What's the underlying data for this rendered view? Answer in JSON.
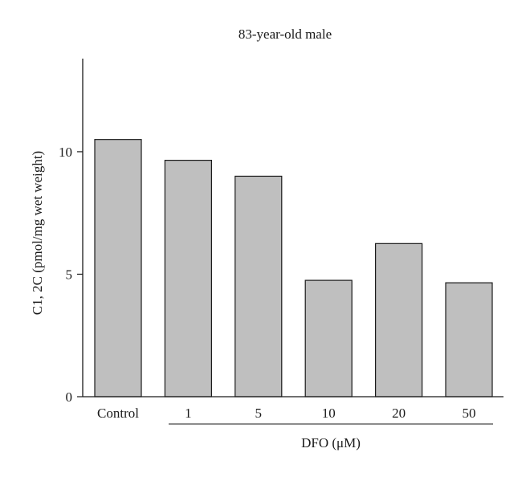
{
  "chart_data": {
    "type": "bar",
    "title": "83-year-old male",
    "ylabel": "C1, 2C (pmol/mg wet weight)",
    "categories": [
      "Control",
      "1",
      "5",
      "10",
      "20",
      "50"
    ],
    "values": [
      10.5,
      9.65,
      9.0,
      4.75,
      6.25,
      4.65
    ],
    "ylim": [
      0,
      13.8
    ],
    "yticks": [
      0,
      5,
      10
    ],
    "group_label": "DFO (μM)",
    "bar_color": "#bfbfbf",
    "grid": false
  }
}
